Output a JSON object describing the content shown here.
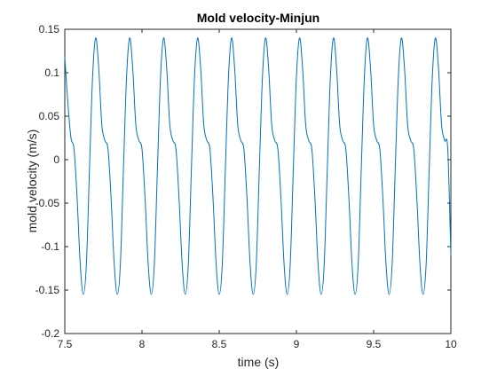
{
  "chart_data": {
    "type": "line",
    "title": "Mold velocity-Minjun",
    "xlabel": "time (s)",
    "ylabel": "mold velocity (m/s)",
    "xlim": [
      7.5,
      10
    ],
    "ylim": [
      -0.2,
      0.15
    ],
    "xticks": [
      7.5,
      8,
      8.5,
      9,
      9.5,
      10
    ],
    "xtick_labels": [
      "7.5",
      "8",
      "8.5",
      "9",
      "9.5",
      "10"
    ],
    "yticks": [
      -0.2,
      -0.15,
      -0.1,
      -0.05,
      0,
      0.05,
      0.1,
      0.15
    ],
    "ytick_labels": [
      "-0.2",
      "-0.15",
      "-0.1",
      "-0.05",
      "0",
      "0.05",
      "0.1",
      "0.15"
    ],
    "grid": false,
    "series": [
      {
        "name": "mold velocity",
        "color": "#0072BD",
        "x": [
          7.5,
          7.52,
          7.54,
          7.56,
          7.58,
          7.6,
          7.62,
          7.64,
          7.66,
          7.68,
          7.7,
          7.72,
          7.74,
          7.76,
          7.78,
          7.8,
          7.82,
          7.84,
          7.86,
          7.88,
          7.9,
          7.92,
          7.94,
          7.96,
          7.98,
          8.0,
          8.02,
          8.04,
          8.06,
          8.08,
          8.1,
          8.12,
          8.14,
          8.16,
          8.18,
          8.2,
          8.22,
          8.24,
          8.26,
          8.28,
          8.3,
          8.32,
          8.34,
          8.36,
          8.38,
          8.4,
          8.42,
          8.44,
          8.46,
          8.48,
          8.5,
          8.52,
          8.54,
          8.56,
          8.58,
          8.6,
          8.62,
          8.64,
          8.66,
          8.68,
          8.7,
          8.72,
          8.74,
          8.76,
          8.78,
          8.8,
          8.82,
          8.84,
          8.86,
          8.88,
          8.9,
          8.92,
          8.94,
          8.96,
          8.98,
          9.0,
          9.02,
          9.04,
          9.06,
          9.08,
          9.1,
          9.12,
          9.14,
          9.16,
          9.18,
          9.2,
          9.22,
          9.24,
          9.26,
          9.28,
          9.3,
          9.32,
          9.34,
          9.36,
          9.38,
          9.4,
          9.42,
          9.44,
          9.46,
          9.48,
          9.5,
          9.52,
          9.54,
          9.56,
          9.58,
          9.6,
          9.62,
          9.64,
          9.66,
          9.68,
          9.7,
          9.72,
          9.74,
          9.76,
          9.78,
          9.8,
          9.82,
          9.84,
          9.86,
          9.88,
          9.9,
          9.92,
          9.94,
          9.96,
          9.98,
          10.0
        ],
        "y": [
          0.118,
          0.065,
          0.025,
          0.012,
          -0.045,
          -0.12,
          -0.155,
          -0.12,
          -0.01,
          0.095,
          0.14,
          0.105,
          0.04,
          0.022,
          0.012,
          -0.045,
          -0.12,
          -0.155,
          -0.12,
          -0.01,
          0.095,
          0.14,
          0.105,
          0.04,
          0.022,
          0.012,
          -0.045,
          -0.12,
          -0.155,
          -0.12,
          -0.01,
          0.095,
          0.14,
          0.105,
          0.04,
          0.022,
          0.012,
          -0.045,
          -0.12,
          -0.155,
          -0.12,
          -0.01,
          0.095,
          0.14,
          0.105,
          0.04,
          0.022,
          0.012,
          -0.045,
          -0.12,
          -0.155,
          -0.12,
          -0.01,
          0.095,
          0.14,
          0.105,
          0.04,
          0.022,
          0.012,
          -0.045,
          -0.12,
          -0.155,
          -0.12,
          -0.01,
          0.095,
          0.14,
          0.105,
          0.04,
          0.022,
          0.012,
          -0.045,
          -0.12,
          -0.155,
          -0.12,
          -0.01,
          0.095,
          0.14,
          0.105,
          0.04,
          0.022,
          0.012,
          -0.045,
          -0.12,
          -0.155,
          -0.12,
          -0.01,
          0.095,
          0.14,
          0.105,
          0.04,
          0.022,
          0.012,
          -0.045,
          -0.12,
          -0.155,
          -0.12,
          -0.01,
          0.095,
          0.14,
          0.105,
          0.04,
          0.022,
          0.012,
          -0.045,
          -0.12,
          -0.155,
          -0.12,
          -0.01,
          0.095,
          0.14,
          0.105,
          0.04,
          0.022,
          0.012,
          -0.045,
          -0.12,
          -0.155,
          -0.12,
          -0.01,
          0.095,
          0.14,
          0.105,
          0.04,
          0.022,
          0.012,
          -0.11
        ]
      }
    ]
  }
}
